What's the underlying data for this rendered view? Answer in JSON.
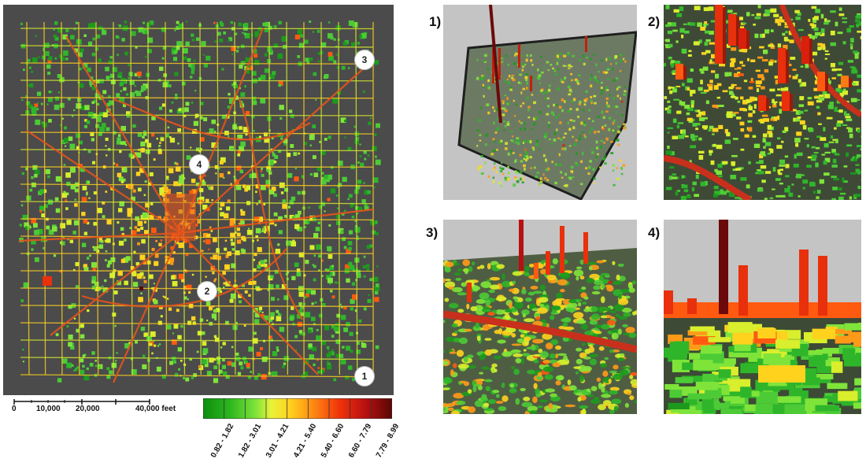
{
  "map": {
    "background_color": "#4b4b4b",
    "markers": [
      "1",
      "2",
      "3",
      "4"
    ]
  },
  "scale_bar": {
    "ticks": [
      "0",
      "10,000",
      "20,000",
      "40,000 feet"
    ]
  },
  "legend": {
    "classes": [
      {
        "label": "0.82 - 1.82",
        "color": "#12a312"
      },
      {
        "label": "1.82 - 3.01",
        "color": "#5bd52c"
      },
      {
        "label": "3.01 - 4.21",
        "color": "#d6ee2c"
      },
      {
        "label": "4.21 - 5.40",
        "color": "#ffd21e"
      },
      {
        "label": "5.40 - 6.60",
        "color": "#ff8a12"
      },
      {
        "label": "6.60 - 7.79",
        "color": "#e8300c"
      },
      {
        "label": "7.79 - 8.99",
        "color": "#7a0a0a"
      }
    ]
  },
  "panels": [
    {
      "label": "1)"
    },
    {
      "label": "2)"
    },
    {
      "label": "3)"
    },
    {
      "label": "4)"
    }
  ]
}
